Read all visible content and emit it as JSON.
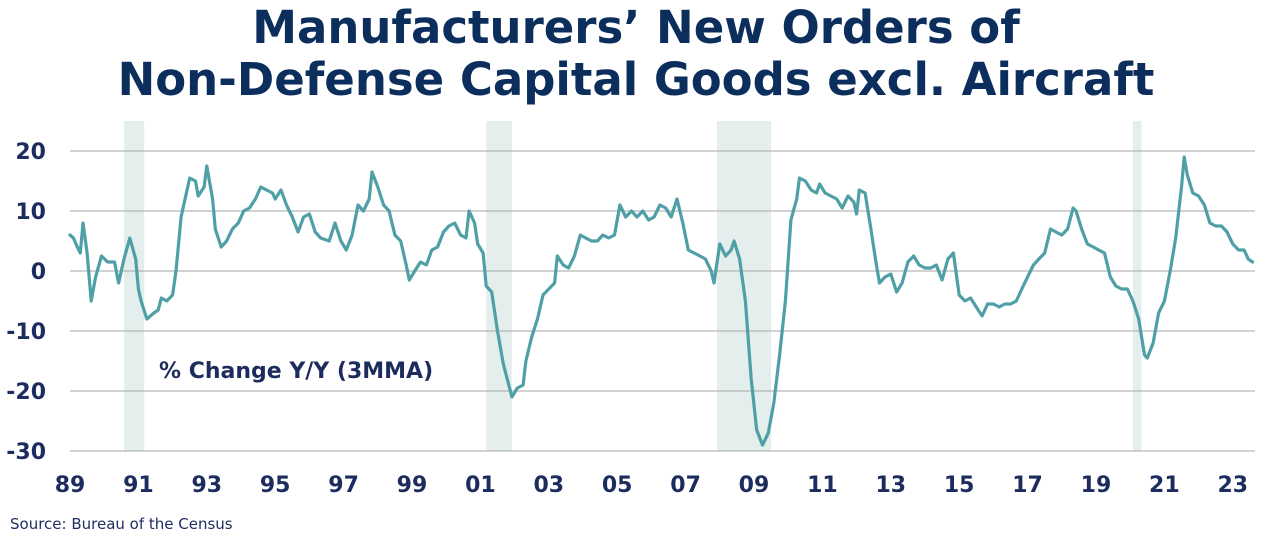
{
  "title_line1": "Manufacturers’ New Orders of",
  "title_line2": "Non-Defense Capital Goods excl. Aircraft",
  "source": "Source:  Bureau of the Census",
  "chart_data": {
    "type": "line",
    "title": "Manufacturers’ New Orders of Non-Defense Capital Goods excl. Aircraft",
    "annotation": "% Change Y/Y (3MMA)",
    "ylim": [
      -30,
      25
    ],
    "yticks": [
      20,
      10,
      0,
      -10,
      -20,
      -30
    ],
    "xlim": [
      1989.0,
      2023.65
    ],
    "xticks": [
      {
        "value": 1989,
        "label": "89"
      },
      {
        "value": 1991,
        "label": "91"
      },
      {
        "value": 1993,
        "label": "93"
      },
      {
        "value": 1995,
        "label": "95"
      },
      {
        "value": 1997,
        "label": "97"
      },
      {
        "value": 1999,
        "label": "99"
      },
      {
        "value": 2001,
        "label": "01"
      },
      {
        "value": 2003,
        "label": "03"
      },
      {
        "value": 2005,
        "label": "05"
      },
      {
        "value": 2007,
        "label": "07"
      },
      {
        "value": 2009,
        "label": "09"
      },
      {
        "value": 2011,
        "label": "11"
      },
      {
        "value": 2013,
        "label": "13"
      },
      {
        "value": 2015,
        "label": "15"
      },
      {
        "value": 2017,
        "label": "17"
      },
      {
        "value": 2019,
        "label": "19"
      },
      {
        "value": 2021,
        "label": "21"
      },
      {
        "value": 2023,
        "label": "23"
      }
    ],
    "grid": "horizontal",
    "line_color": "#4f9fa6",
    "recession_color": "#e4eeec",
    "recessions": [
      [
        1990.58,
        1991.17
      ],
      [
        2001.17,
        2001.92
      ],
      [
        2007.92,
        2009.5
      ],
      [
        2020.08,
        2020.33
      ]
    ],
    "series": [
      {
        "values": [
          [
            1989.0,
            6.0
          ],
          [
            1989.1,
            5.5
          ],
          [
            1989.2,
            4.2
          ],
          [
            1989.3,
            3.0
          ],
          [
            1989.38,
            8.0
          ],
          [
            1989.5,
            3.0
          ],
          [
            1989.62,
            -5.0
          ],
          [
            1989.75,
            -1.0
          ],
          [
            1989.92,
            2.5
          ],
          [
            1990.1,
            1.5
          ],
          [
            1990.3,
            1.5
          ],
          [
            1990.42,
            -2.0
          ],
          [
            1990.58,
            2.0
          ],
          [
            1990.75,
            5.5
          ],
          [
            1990.92,
            2.0
          ],
          [
            1991.0,
            -3.0
          ],
          [
            1991.08,
            -5.0
          ],
          [
            1991.25,
            -8.0
          ],
          [
            1991.45,
            -7.0
          ],
          [
            1991.58,
            -6.5
          ],
          [
            1991.67,
            -4.5
          ],
          [
            1991.83,
            -5.0
          ],
          [
            1992.0,
            -4.0
          ],
          [
            1992.1,
            0.0
          ],
          [
            1992.25,
            9.0
          ],
          [
            1992.5,
            15.5
          ],
          [
            1992.67,
            15.0
          ],
          [
            1992.75,
            12.5
          ],
          [
            1992.92,
            14.0
          ],
          [
            1993.0,
            17.5
          ],
          [
            1993.17,
            12.0
          ],
          [
            1993.25,
            7.0
          ],
          [
            1993.42,
            4.0
          ],
          [
            1993.58,
            5.0
          ],
          [
            1993.75,
            7.0
          ],
          [
            1993.92,
            8.0
          ],
          [
            1994.08,
            10.0
          ],
          [
            1994.25,
            10.5
          ],
          [
            1994.42,
            12.0
          ],
          [
            1994.58,
            14.0
          ],
          [
            1994.75,
            13.5
          ],
          [
            1994.92,
            13.0
          ],
          [
            1995.0,
            12.0
          ],
          [
            1995.17,
            13.5
          ],
          [
            1995.33,
            11.0
          ],
          [
            1995.5,
            9.0
          ],
          [
            1995.67,
            6.5
          ],
          [
            1995.83,
            9.0
          ],
          [
            1996.0,
            9.5
          ],
          [
            1996.17,
            6.5
          ],
          [
            1996.33,
            5.5
          ],
          [
            1996.58,
            5.0
          ],
          [
            1996.75,
            8.0
          ],
          [
            1996.92,
            5.0
          ],
          [
            1997.08,
            3.5
          ],
          [
            1997.25,
            6.0
          ],
          [
            1997.42,
            11.0
          ],
          [
            1997.58,
            10.0
          ],
          [
            1997.75,
            12.0
          ],
          [
            1997.83,
            16.5
          ],
          [
            1998.0,
            14.0
          ],
          [
            1998.17,
            11.0
          ],
          [
            1998.33,
            10.0
          ],
          [
            1998.5,
            6.0
          ],
          [
            1998.67,
            5.0
          ],
          [
            1998.83,
            1.0
          ],
          [
            1998.92,
            -1.5
          ],
          [
            1999.08,
            0.0
          ],
          [
            1999.25,
            1.5
          ],
          [
            1999.42,
            1.0
          ],
          [
            1999.58,
            3.5
          ],
          [
            1999.75,
            4.0
          ],
          [
            1999.92,
            6.5
          ],
          [
            2000.08,
            7.5
          ],
          [
            2000.25,
            8.0
          ],
          [
            2000.42,
            6.0
          ],
          [
            2000.58,
            5.5
          ],
          [
            2000.67,
            10.0
          ],
          [
            2000.83,
            8.0
          ],
          [
            2000.92,
            4.5
          ],
          [
            2001.08,
            3.0
          ],
          [
            2001.17,
            -2.5
          ],
          [
            2001.33,
            -3.5
          ],
          [
            2001.5,
            -10.0
          ],
          [
            2001.67,
            -15.5
          ],
          [
            2001.83,
            -19.0
          ],
          [
            2001.92,
            -21.0
          ],
          [
            2002.08,
            -19.5
          ],
          [
            2002.25,
            -19.0
          ],
          [
            2002.33,
            -15.0
          ],
          [
            2002.5,
            -11.0
          ],
          [
            2002.67,
            -8.0
          ],
          [
            2002.83,
            -4.0
          ],
          [
            2003.0,
            -3.0
          ],
          [
            2003.17,
            -2.0
          ],
          [
            2003.25,
            2.5
          ],
          [
            2003.42,
            1.0
          ],
          [
            2003.58,
            0.5
          ],
          [
            2003.75,
            2.5
          ],
          [
            2003.92,
            6.0
          ],
          [
            2004.08,
            5.5
          ],
          [
            2004.25,
            5.0
          ],
          [
            2004.42,
            5.0
          ],
          [
            2004.58,
            6.0
          ],
          [
            2004.75,
            5.5
          ],
          [
            2004.92,
            6.0
          ],
          [
            2005.08,
            11.0
          ],
          [
            2005.25,
            9.0
          ],
          [
            2005.42,
            10.0
          ],
          [
            2005.58,
            9.0
          ],
          [
            2005.75,
            10.0
          ],
          [
            2005.92,
            8.5
          ],
          [
            2006.08,
            9.0
          ],
          [
            2006.25,
            11.0
          ],
          [
            2006.42,
            10.5
          ],
          [
            2006.58,
            9.0
          ],
          [
            2006.75,
            12.0
          ],
          [
            2006.92,
            8.0
          ],
          [
            2007.08,
            3.5
          ],
          [
            2007.25,
            3.0
          ],
          [
            2007.42,
            2.5
          ],
          [
            2007.58,
            2.0
          ],
          [
            2007.75,
            0.0
          ],
          [
            2007.83,
            -2.0
          ],
          [
            2008.0,
            4.5
          ],
          [
            2008.17,
            2.5
          ],
          [
            2008.33,
            3.5
          ],
          [
            2008.42,
            5.0
          ],
          [
            2008.58,
            2.0
          ],
          [
            2008.75,
            -5.0
          ],
          [
            2008.92,
            -18.0
          ],
          [
            2009.08,
            -26.5
          ],
          [
            2009.25,
            -29.0
          ],
          [
            2009.42,
            -27.0
          ],
          [
            2009.58,
            -22.0
          ],
          [
            2009.75,
            -14.0
          ],
          [
            2009.92,
            -5.0
          ],
          [
            2010.08,
            8.5
          ],
          [
            2010.25,
            12.0
          ],
          [
            2010.33,
            15.5
          ],
          [
            2010.5,
            15.0
          ],
          [
            2010.67,
            13.5
          ],
          [
            2010.83,
            13.0
          ],
          [
            2010.92,
            14.5
          ],
          [
            2011.08,
            13.0
          ],
          [
            2011.25,
            12.5
          ],
          [
            2011.42,
            12.0
          ],
          [
            2011.58,
            10.5
          ],
          [
            2011.75,
            12.5
          ],
          [
            2011.92,
            11.5
          ],
          [
            2012.0,
            9.5
          ],
          [
            2012.08,
            13.5
          ],
          [
            2012.25,
            13.0
          ],
          [
            2012.42,
            7.0
          ],
          [
            2012.58,
            1.0
          ],
          [
            2012.67,
            -2.0
          ],
          [
            2012.83,
            -1.0
          ],
          [
            2013.0,
            -0.5
          ],
          [
            2013.17,
            -3.5
          ],
          [
            2013.33,
            -2.0
          ],
          [
            2013.5,
            1.5
          ],
          [
            2013.67,
            2.5
          ],
          [
            2013.83,
            1.0
          ],
          [
            2014.0,
            0.5
          ],
          [
            2014.17,
            0.5
          ],
          [
            2014.33,
            1.0
          ],
          [
            2014.5,
            -1.5
          ],
          [
            2014.67,
            2.0
          ],
          [
            2014.83,
            3.0
          ],
          [
            2015.0,
            -4.0
          ],
          [
            2015.17,
            -5.0
          ],
          [
            2015.33,
            -4.5
          ],
          [
            2015.5,
            -6.0
          ],
          [
            2015.67,
            -7.5
          ],
          [
            2015.83,
            -5.5
          ],
          [
            2016.0,
            -5.5
          ],
          [
            2016.17,
            -6.0
          ],
          [
            2016.33,
            -5.5
          ],
          [
            2016.5,
            -5.5
          ],
          [
            2016.67,
            -5.0
          ],
          [
            2016.83,
            -3.0
          ],
          [
            2017.0,
            -1.0
          ],
          [
            2017.17,
            1.0
          ],
          [
            2017.33,
            2.0
          ],
          [
            2017.5,
            3.0
          ],
          [
            2017.67,
            7.0
          ],
          [
            2017.83,
            6.5
          ],
          [
            2018.0,
            6.0
          ],
          [
            2018.17,
            7.0
          ],
          [
            2018.33,
            10.5
          ],
          [
            2018.42,
            10.0
          ],
          [
            2018.58,
            7.0
          ],
          [
            2018.75,
            4.5
          ],
          [
            2018.92,
            4.0
          ],
          [
            2019.08,
            3.5
          ],
          [
            2019.25,
            3.0
          ],
          [
            2019.42,
            -1.0
          ],
          [
            2019.58,
            -2.5
          ],
          [
            2019.75,
            -3.0
          ],
          [
            2019.92,
            -3.0
          ],
          [
            2020.08,
            -5.0
          ],
          [
            2020.25,
            -8.0
          ],
          [
            2020.42,
            -14.0
          ],
          [
            2020.5,
            -14.5
          ],
          [
            2020.67,
            -12.0
          ],
          [
            2020.83,
            -7.0
          ],
          [
            2021.0,
            -5.0
          ],
          [
            2021.17,
            0.0
          ],
          [
            2021.33,
            5.5
          ],
          [
            2021.5,
            14.0
          ],
          [
            2021.58,
            19.0
          ],
          [
            2021.67,
            16.0
          ],
          [
            2021.83,
            13.0
          ],
          [
            2022.0,
            12.5
          ],
          [
            2022.17,
            11.0
          ],
          [
            2022.33,
            8.0
          ],
          [
            2022.5,
            7.5
          ],
          [
            2022.67,
            7.5
          ],
          [
            2022.83,
            6.5
          ],
          [
            2023.0,
            4.5
          ],
          [
            2023.17,
            3.5
          ],
          [
            2023.33,
            3.5
          ],
          [
            2023.45,
            2.0
          ],
          [
            2023.58,
            1.5
          ]
        ]
      }
    ]
  }
}
